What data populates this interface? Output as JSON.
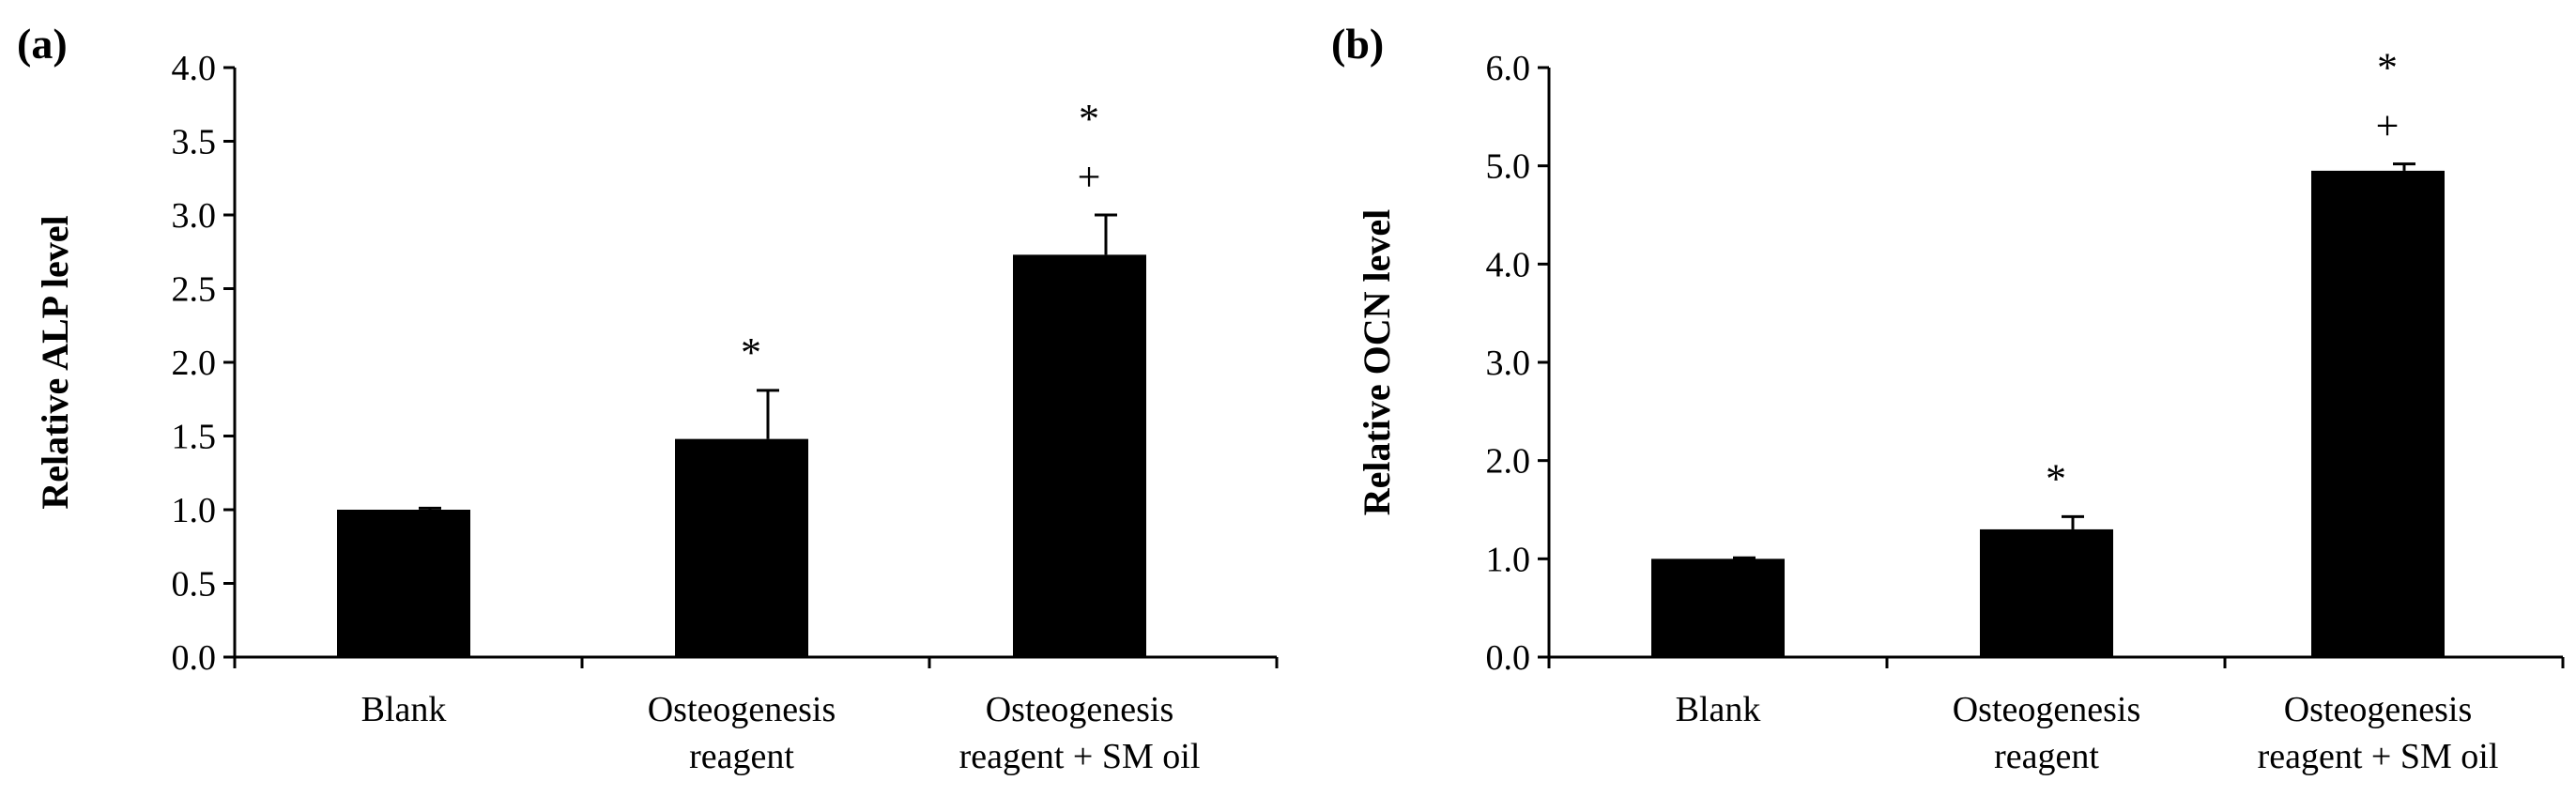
{
  "chart_data": [
    {
      "panel_label": "(a)",
      "type": "bar",
      "categories": [
        [
          "Blank"
        ],
        [
          "Osteogenesis",
          "reagent"
        ],
        [
          "Osteogenesis",
          "reagent + SM oil"
        ]
      ],
      "values": [
        1.0,
        1.48,
        2.73
      ],
      "errors": [
        0.01,
        0.33,
        0.27
      ],
      "significance": [
        [],
        [
          "*"
        ],
        [
          "*",
          "+"
        ]
      ],
      "ylabel": "Relative ALP level",
      "xlabel": "",
      "ylim": [
        0,
        4.0
      ],
      "yticks": [
        "0.0",
        "0.5",
        "1.0",
        "1.5",
        "2.0",
        "2.5",
        "3.0",
        "3.5",
        "4.0"
      ],
      "grid": false,
      "bar_color": "#000000"
    },
    {
      "panel_label": "(b)",
      "type": "bar",
      "categories": [
        [
          "Blank"
        ],
        [
          "Osteogenesis",
          "reagent"
        ],
        [
          "Osteogenesis",
          "reagent + SM oil"
        ]
      ],
      "values": [
        1.0,
        1.3,
        4.95
      ],
      "errors": [
        0.01,
        0.13,
        0.07
      ],
      "significance": [
        [],
        [
          "*"
        ],
        [
          "*",
          "+"
        ]
      ],
      "ylabel": "Relative OCN level",
      "xlabel": "",
      "ylim": [
        0,
        6.0
      ],
      "yticks": [
        "0.0",
        "1.0",
        "2.0",
        "3.0",
        "4.0",
        "5.0",
        "6.0"
      ],
      "grid": false,
      "bar_color": "#000000"
    }
  ]
}
